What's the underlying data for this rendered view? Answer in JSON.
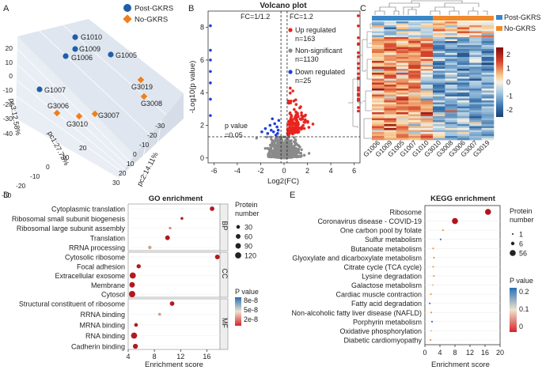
{
  "chart_data": [
    {
      "panel": "A",
      "type": "scatter",
      "title": "",
      "axes": {
        "pc1": "pc1:27.72%",
        "pc2": "pc2:14.11%",
        "pc3": "pc3:12.58%"
      },
      "ticks_pc3": [
        "20",
        "10",
        "0",
        "-10",
        "-20",
        "-30",
        "-40"
      ],
      "ticks_pc1": [
        "-30",
        "-20",
        "-10",
        "0",
        "10",
        "20"
      ],
      "ticks_pc2": [
        "-30",
        "-20",
        "-10",
        "0",
        "10",
        "20",
        "30"
      ],
      "legend": [
        {
          "name": "Post-GKRS",
          "color": "#1f5fa8",
          "marker": "circle"
        },
        {
          "name": "No-GKRS",
          "color": "#f07f1a",
          "marker": "diamond"
        }
      ],
      "points": [
        {
          "label": "G1010",
          "group": "Post-GKRS"
        },
        {
          "label": "G1009",
          "group": "Post-GKRS"
        },
        {
          "label": "G1006",
          "group": "Post-GKRS"
        },
        {
          "label": "G1005",
          "group": "Post-GKRS"
        },
        {
          "label": "G1007",
          "group": "Post-GKRS"
        },
        {
          "label": "G3019",
          "group": "No-GKRS"
        },
        {
          "label": "G3006",
          "group": "No-GKRS"
        },
        {
          "label": "G3008",
          "group": "No-GKRS"
        },
        {
          "label": "G3010",
          "group": "No-GKRS"
        },
        {
          "label": "G3007",
          "group": "No-GKRS"
        }
      ]
    },
    {
      "panel": "B",
      "type": "scatter",
      "title": "Volcano plot",
      "xlabel": "Log2(FC)",
      "ylabel": "-Log10(p value)",
      "xlim": [
        -6.5,
        6.5
      ],
      "ylim": [
        -0.3,
        9
      ],
      "xticks": [
        -6,
        -4,
        -2,
        0,
        2,
        4,
        6
      ],
      "yticks": [
        0,
        2,
        4,
        6,
        8
      ],
      "fc_lines": [
        -0.263,
        0.263
      ],
      "fc_left_label": "FC=1/1.2",
      "fc_right_label": "FC=1.2",
      "p_line": 1.3,
      "p_line_label": "p value\n=0.05",
      "series": [
        {
          "name": "Up regulated",
          "count": "n=163",
          "color": "#e8241f"
        },
        {
          "name": "Non-significant",
          "count": "n=1130",
          "color": "#8a8a8a"
        },
        {
          "name": "Down regulated",
          "count": "n=25",
          "color": "#1f3fe0"
        }
      ]
    },
    {
      "panel": "C",
      "type": "heatmap",
      "groups": [
        {
          "name": "Post-GKRS",
          "color": "#3a87c8"
        },
        {
          "name": "No-GKRS",
          "color": "#f08a2a"
        }
      ],
      "columns": [
        "G1006",
        "G1009",
        "G1005",
        "G1007",
        "G1010",
        "G3010",
        "G3008",
        "G3006",
        "G3007",
        "G3019"
      ],
      "color_scale": {
        "min": -2.5,
        "max": 2.5,
        "ticks": [
          "2",
          "1",
          "0",
          "-1",
          "-2"
        ]
      }
    },
    {
      "panel": "D",
      "type": "scatter",
      "title": "GO enrichment",
      "xlabel": "Enrichment score",
      "xlim": [
        4,
        18
      ],
      "xticks": [
        4,
        8,
        12,
        16
      ],
      "size_legend_title": "Protein\nnumber",
      "size_legend": [
        30,
        60,
        90,
        120
      ],
      "color_legend_title": "P value",
      "color_legend_ticks": [
        "8e-8",
        "5e-8",
        "2e-8"
      ],
      "facets": [
        {
          "name": "BP",
          "terms": [
            {
              "term": "Cytoplasmic translation",
              "score": 16.8,
              "proteins": 55,
              "p": 1e-09
            },
            {
              "term": "Ribosomal small subunit biogenesis",
              "score": 12.2,
              "proteins": 12,
              "p": 1e-09
            },
            {
              "term": "Ribosomal large subunit assembly",
              "score": 10.4,
              "proteins": 10,
              "p": 5e-08
            },
            {
              "term": "Translation",
              "score": 10.0,
              "proteins": 60,
              "p": 1e-09
            },
            {
              "term": "RRNA processing",
              "score": 7.3,
              "proteins": 25,
              "p": 8e-08
            }
          ]
        },
        {
          "name": "CC",
          "terms": [
            {
              "term": "Cytosolic ribosome",
              "score": 17.6,
              "proteins": 60,
              "p": 1e-09
            },
            {
              "term": "Focal adhesion",
              "score": 5.6,
              "proteins": 45,
              "p": 2e-09
            },
            {
              "term": "Extracellular exosome",
              "score": 4.7,
              "proteins": 120,
              "p": 1e-09
            },
            {
              "term": "Membrane",
              "score": 4.6,
              "proteins": 90,
              "p": 1e-09
            },
            {
              "term": "Cytosol",
              "score": 4.6,
              "proteins": 130,
              "p": 1e-09
            }
          ]
        },
        {
          "name": "MF",
          "terms": [
            {
              "term": "Structural constituent of ribosome",
              "score": 10.7,
              "proteins": 55,
              "p": 1e-09
            },
            {
              "term": "RRNA binding",
              "score": 8.8,
              "proteins": 15,
              "p": 8e-08
            },
            {
              "term": "MRNA binding",
              "score": 5.2,
              "proteins": 30,
              "p": 3e-08
            },
            {
              "term": "RNA binding",
              "score": 4.9,
              "proteins": 120,
              "p": 1e-09
            },
            {
              "term": "Cadherin binding",
              "score": 5.1,
              "proteins": 70,
              "p": 2e-09
            }
          ]
        }
      ]
    },
    {
      "panel": "E",
      "type": "scatter",
      "title": "KEGG enrichment",
      "xlabel": "Enrichment score",
      "xlim": [
        0,
        20
      ],
      "xticks": [
        0,
        4,
        8,
        12,
        16,
        20
      ],
      "size_legend_title": "Protein\nnumber",
      "size_legend": [
        1,
        6,
        56
      ],
      "color_legend_title": "P value",
      "color_legend_ticks": [
        "0.2",
        "0.1",
        "0"
      ],
      "terms": [
        {
          "term": "Ribosome",
          "score": 16.8,
          "proteins": 56,
          "p": 0.0
        },
        {
          "term": "Coronavirus disease - COVID-19",
          "score": 8.0,
          "proteins": 40,
          "p": 0.0
        },
        {
          "term": "One carbon pool by folate",
          "score": 4.8,
          "proteins": 3,
          "p": 0.08
        },
        {
          "term": "Sulfur metabolism",
          "score": 4.2,
          "proteins": 2,
          "p": 0.25
        },
        {
          "term": "Butanoate metabolism",
          "score": 2.2,
          "proteins": 2,
          "p": 0.07
        },
        {
          "term": "Glyoxylate and dicarboxylate metabolism",
          "score": 2.4,
          "proteins": 2,
          "p": 0.06
        },
        {
          "term": "Citrate cycle (TCA cycle)",
          "score": 2.2,
          "proteins": 2,
          "p": 0.1
        },
        {
          "term": "Lysine degradation",
          "score": 2.4,
          "proteins": 3,
          "p": 0.05
        },
        {
          "term": "Galactose metabolism",
          "score": 2.1,
          "proteins": 2,
          "p": 0.14
        },
        {
          "term": "Cardiac muscle contraction",
          "score": 1.6,
          "proteins": 3,
          "p": 0.04
        },
        {
          "term": "Fatty acid degradation",
          "score": 1.3,
          "proteins": 2,
          "p": 0.2
        },
        {
          "term": "Non-alcoholic fatty liver disease (NAFLD)",
          "score": 1.7,
          "proteins": 3,
          "p": 0.07
        },
        {
          "term": "Porphyrin metabolism",
          "score": 1.9,
          "proteins": 2,
          "p": 0.22
        },
        {
          "term": "Oxidative phosphorylation",
          "score": 1.7,
          "proteins": 3,
          "p": 0.12
        },
        {
          "term": "Diabetic cardiomyopathy",
          "score": 1.5,
          "proteins": 3,
          "p": 0.09
        }
      ]
    }
  ],
  "panel_letters": [
    "A",
    "B",
    "C",
    "D",
    "E"
  ]
}
